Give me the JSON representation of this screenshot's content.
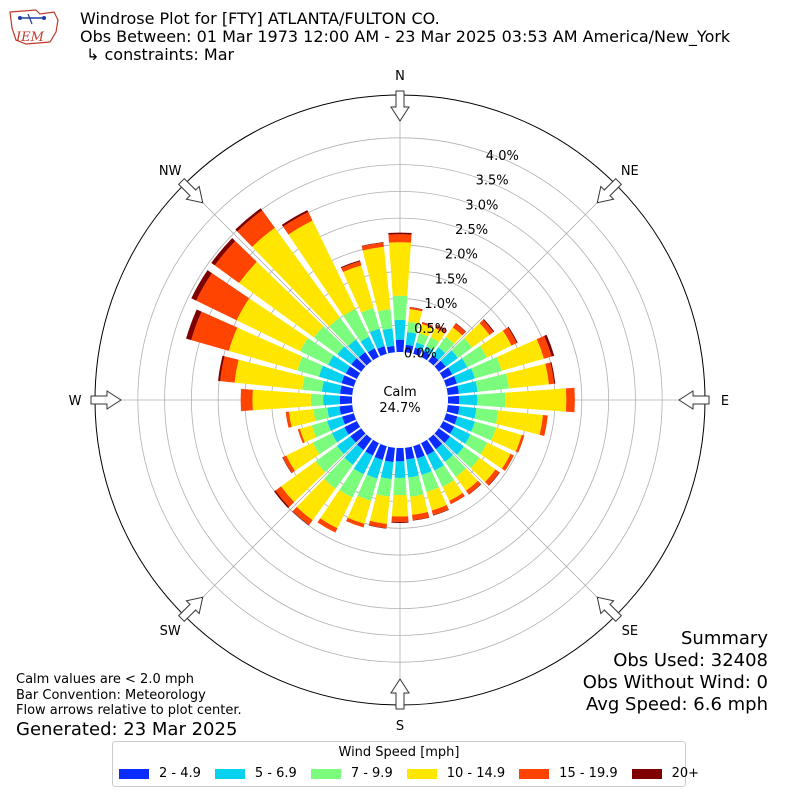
{
  "logo": {
    "text": "IEM"
  },
  "header": {
    "title": "Windrose Plot for [FTY] ATLANTA/FULTON CO.",
    "obs_between": "Obs Between: 01 Mar 1973 12:00 AM - 23 Mar 2025 03:53 AM America/New_York",
    "constraints": "↳ constraints: Mar"
  },
  "notes": {
    "calm_note": "Calm values are < 2.0 mph",
    "bar_convention": "Bar Convention: Meteorology",
    "flow_note": "Flow arrows relative to plot center.",
    "generated": "Generated: 23 Mar 2025"
  },
  "summary": {
    "title": "Summary",
    "obs_used": "Obs Used: 32408",
    "obs_without_wind": "Obs Without Wind: 0",
    "avg_speed": "Avg Speed: 6.6 mph"
  },
  "legend": {
    "title": "Wind Speed [mph]"
  },
  "chart_data": {
    "type": "windrose",
    "calm_label": "Calm",
    "calm_value": "24.7%",
    "calm_percent": 24.7,
    "directions_deg": [
      0,
      10,
      20,
      30,
      40,
      50,
      60,
      70,
      80,
      90,
      100,
      110,
      120,
      130,
      140,
      150,
      160,
      170,
      180,
      190,
      200,
      210,
      220,
      230,
      240,
      250,
      260,
      270,
      280,
      290,
      300,
      310,
      320,
      330,
      340,
      350
    ],
    "compass_labels": {
      "N": 0,
      "NE": 45,
      "E": 90,
      "SE": 135,
      "S": 180,
      "SW": 225,
      "W": 270,
      "NW": 315
    },
    "radial_ticks": [
      "0.0%",
      "0.5%",
      "1.0%",
      "1.5%",
      "2.0%",
      "2.5%",
      "3.0%",
      "3.5%",
      "4.0%"
    ],
    "radial_tick_values": [
      0,
      0.5,
      1,
      1.5,
      2,
      2.5,
      3,
      3.5,
      4
    ],
    "rmax": 4.8,
    "bins": [
      {
        "name": "2 - 4.9",
        "color": "#0b2cff"
      },
      {
        "name": "5 - 6.9",
        "color": "#06d2f0"
      },
      {
        "name": "7 - 9.9",
        "color": "#7bfc7d"
      },
      {
        "name": "10 - 14.9",
        "color": "#ffe600"
      },
      {
        "name": "15 - 19.9",
        "color": "#ff4300"
      },
      {
        "name": "20+",
        "color": "#7f0000"
      }
    ],
    "cumulative": [
      [
        0.23,
        0.6,
        1.05,
        2.05,
        2.2,
        2.23
      ],
      [
        0.14,
        0.38,
        0.57,
        0.81,
        0.84,
        0.85
      ],
      [
        0.12,
        0.22,
        0.4,
        0.58,
        0.61,
        0.62
      ],
      [
        0.12,
        0.22,
        0.41,
        0.6,
        0.66,
        0.67
      ],
      [
        0.14,
        0.32,
        0.56,
        0.78,
        0.87,
        0.88
      ],
      [
        0.16,
        0.44,
        0.77,
        1.17,
        1.26,
        1.28
      ],
      [
        0.19,
        0.5,
        0.91,
        1.42,
        1.53,
        1.55
      ],
      [
        0.21,
        0.56,
        1.08,
        1.9,
        2.05,
        2.1
      ],
      [
        0.21,
        0.56,
        1.15,
        1.9,
        2.0,
        2.02
      ],
      [
        0.21,
        0.55,
        1.07,
        2.21,
        2.37,
        2.37
      ],
      [
        0.22,
        0.54,
        0.95,
        1.79,
        1.88,
        1.88
      ],
      [
        0.22,
        0.56,
        0.97,
        1.47,
        1.52,
        1.52
      ],
      [
        0.23,
        0.57,
        0.92,
        1.4,
        1.47,
        1.47
      ],
      [
        0.26,
        0.58,
        0.94,
        1.31,
        1.4,
        1.41
      ],
      [
        0.24,
        0.53,
        0.88,
        1.2,
        1.28,
        1.29
      ],
      [
        0.25,
        0.57,
        0.91,
        1.2,
        1.27,
        1.27
      ],
      [
        0.24,
        0.56,
        0.89,
        1.25,
        1.34,
        1.35
      ],
      [
        0.22,
        0.56,
        0.92,
        1.26,
        1.36,
        1.37
      ],
      [
        0.25,
        0.56,
        0.88,
        1.28,
        1.38,
        1.4
      ],
      [
        0.27,
        0.59,
        0.92,
        1.43,
        1.51,
        1.52
      ],
      [
        0.27,
        0.63,
        1.06,
        1.51,
        1.58,
        1.58
      ],
      [
        0.26,
        0.65,
        1.13,
        1.77,
        1.86,
        1.86
      ],
      [
        0.26,
        0.6,
        1.15,
        1.88,
        1.99,
        2.0
      ],
      [
        0.25,
        0.56,
        1.05,
        1.85,
        1.98,
        2.01
      ],
      [
        0.26,
        0.52,
        0.92,
        1.47,
        1.54,
        1.55
      ],
      [
        0.23,
        0.52,
        0.82,
        1.05,
        1.09,
        1.09
      ],
      [
        0.24,
        0.47,
        0.73,
        1.19,
        1.25,
        1.25
      ],
      [
        0.23,
        0.54,
        0.77,
        1.86,
        2.08,
        2.08
      ],
      [
        0.23,
        0.57,
        0.94,
        2.21,
        2.48,
        2.52
      ],
      [
        0.24,
        0.68,
        1.1,
        2.43,
        3.16,
        3.26
      ],
      [
        0.23,
        0.6,
        1.18,
        2.5,
        3.34,
        3.44
      ],
      [
        0.23,
        0.55,
        1.09,
        2.82,
        3.38,
        3.46
      ],
      [
        0.21,
        0.5,
        1.01,
        3.08,
        3.48,
        3.53
      ],
      [
        0.18,
        0.42,
        1.0,
        2.83,
        3.01,
        3.05
      ],
      [
        0.15,
        0.49,
        0.89,
        1.72,
        1.8,
        1.82
      ],
      [
        0.12,
        0.45,
        0.81,
        1.98,
        2.06,
        2.07
      ]
    ]
  }
}
